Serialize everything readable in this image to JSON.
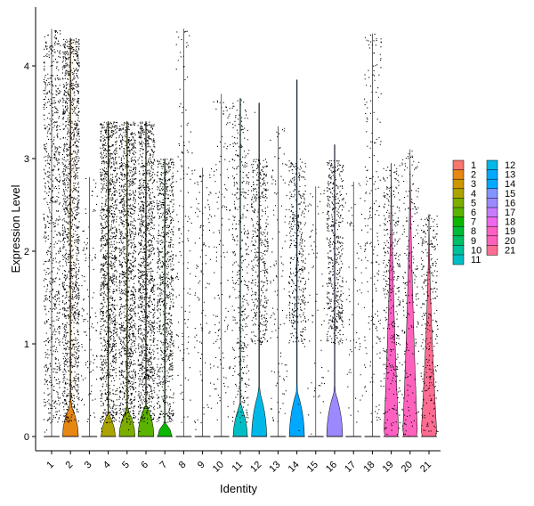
{
  "chart_data": {
    "type": "violin",
    "xlabel": "Identity",
    "ylabel": "Expression Level",
    "ylim": [
      -0.2,
      4.5
    ],
    "yticks": [
      0,
      1,
      2,
      3,
      4
    ],
    "categories": [
      "1",
      "2",
      "3",
      "4",
      "5",
      "6",
      "7",
      "8",
      "9",
      "10",
      "11",
      "12",
      "13",
      "14",
      "15",
      "16",
      "17",
      "18",
      "19",
      "20",
      "21"
    ],
    "series": [
      {
        "identity": "1",
        "color": "#F8766D",
        "max": 4.4,
        "point_density": 0.55,
        "violin_max": 0.0,
        "violin_width": 0.0
      },
      {
        "identity": "2",
        "color": "#E68613",
        "max": 4.3,
        "point_density": 1.0,
        "violin_max": 0.35,
        "violin_width": 0.9
      },
      {
        "identity": "3",
        "color": "#CD9600",
        "max": 2.8,
        "point_density": 0.08,
        "violin_max": 0.0,
        "violin_width": 0.0
      },
      {
        "identity": "4",
        "color": "#ABA300",
        "max": 3.4,
        "point_density": 0.85,
        "violin_max": 0.25,
        "violin_width": 0.8
      },
      {
        "identity": "5",
        "color": "#7CAE00",
        "max": 3.4,
        "point_density": 0.85,
        "violin_max": 0.3,
        "violin_width": 0.9
      },
      {
        "identity": "6",
        "color": "#5BB300",
        "max": 3.4,
        "point_density": 0.85,
        "violin_max": 0.35,
        "violin_width": 0.9
      },
      {
        "identity": "7",
        "color": "#0CB702",
        "max": 3.0,
        "point_density": 0.6,
        "violin_max": 0.15,
        "violin_width": 0.8
      },
      {
        "identity": "8",
        "color": "#00BA38",
        "max": 4.4,
        "point_density": 0.1,
        "violin_max": 0.0,
        "violin_width": 0.0
      },
      {
        "identity": "9",
        "color": "#00BE67",
        "max": 2.9,
        "point_density": 0.08,
        "violin_max": 0.0,
        "violin_width": 0.0
      },
      {
        "identity": "10",
        "color": "#00C19A",
        "max": 3.7,
        "point_density": 0.1,
        "violin_max": 0.0,
        "violin_width": 0.0
      },
      {
        "identity": "11",
        "color": "#00BFC4",
        "max": 3.65,
        "point_density": 0.3,
        "violin_max": 0.35,
        "violin_width": 0.8
      },
      {
        "identity": "12",
        "color": "#00B8E7",
        "max": 3.6,
        "point_density": 0.3,
        "violin_max": 0.5,
        "violin_width": 0.85
      },
      {
        "identity": "13",
        "color": "#00A9FF",
        "max": 3.35,
        "point_density": 0.08,
        "violin_max": 0.0,
        "violin_width": 0.0
      },
      {
        "identity": "14",
        "color": "#00A9FF",
        "max": 3.85,
        "point_density": 0.3,
        "violin_max": 0.5,
        "violin_width": 0.85
      },
      {
        "identity": "15",
        "color": "#8494FF",
        "max": 2.7,
        "point_density": 0.05,
        "violin_max": 0.0,
        "violin_width": 0.0
      },
      {
        "identity": "16",
        "color": "#9B8AFF",
        "max": 3.15,
        "point_density": 0.35,
        "violin_max": 0.5,
        "violin_width": 0.9
      },
      {
        "identity": "17",
        "color": "#C77CFF",
        "max": 2.75,
        "point_density": 0.05,
        "violin_max": 0.0,
        "violin_width": 0.0
      },
      {
        "identity": "18",
        "color": "#ED68ED",
        "max": 4.35,
        "point_density": 0.15,
        "violin_max": 0.0,
        "violin_width": 0.0
      },
      {
        "identity": "19",
        "color": "#FF61C3",
        "max": 2.95,
        "point_density": 0.25,
        "violin_max": 2.95,
        "violin_width": 0.85
      },
      {
        "identity": "20",
        "color": "#FF62BC",
        "max": 3.1,
        "point_density": 0.15,
        "violin_max": 3.1,
        "violin_width": 0.85
      },
      {
        "identity": "21",
        "color": "#FF6C91",
        "max": 2.4,
        "point_density": 0.2,
        "violin_max": 2.4,
        "violin_width": 0.9
      }
    ],
    "legend": {
      "placement": "right",
      "columns": [
        [
          "1",
          "2",
          "3",
          "4",
          "5",
          "6",
          "7",
          "8",
          "9",
          "10",
          "11"
        ],
        [
          "12",
          "13",
          "14",
          "15",
          "16",
          "17",
          "18",
          "19",
          "20",
          "21"
        ]
      ]
    },
    "grid": false
  }
}
